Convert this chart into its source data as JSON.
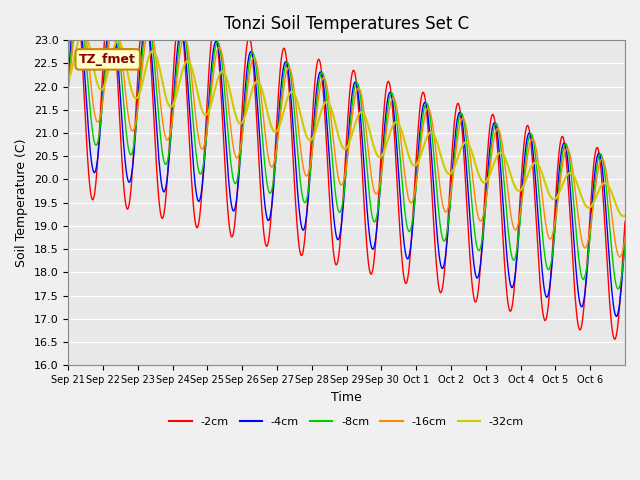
{
  "title": "Tonzi Soil Temperatures Set C",
  "xlabel": "Time",
  "ylabel": "Soil Temperature (C)",
  "ylim": [
    16.0,
    23.0
  ],
  "yticks": [
    16.0,
    16.5,
    17.0,
    17.5,
    18.0,
    18.5,
    19.0,
    19.5,
    20.0,
    20.5,
    21.0,
    21.5,
    22.0,
    22.5,
    23.0
  ],
  "xtick_labels": [
    "Sep 21",
    "Sep 22",
    "Sep 23",
    "Sep 24",
    "Sep 25",
    "Sep 26",
    "Sep 27",
    "Sep 28",
    "Sep 29",
    "Sep 30",
    "Oct 1",
    "Oct 2",
    "Oct 3",
    "Oct 4",
    "Oct 5",
    "Oct 6"
  ],
  "colors": {
    "-2cm": "#ff0000",
    "-4cm": "#0000ff",
    "-8cm": "#00cc00",
    "-16cm": "#ff8800",
    "-32cm": "#cccc00"
  },
  "legend_entries": [
    "-2cm",
    "-4cm",
    "-8cm",
    "-16cm",
    "-32cm"
  ],
  "annotation_text": "TZ_fmet",
  "annotation_bg": "#ffffcc",
  "annotation_border": "#cc8800",
  "bg_color": "#e8e8e8",
  "n_days": 16,
  "points_per_day": 48
}
